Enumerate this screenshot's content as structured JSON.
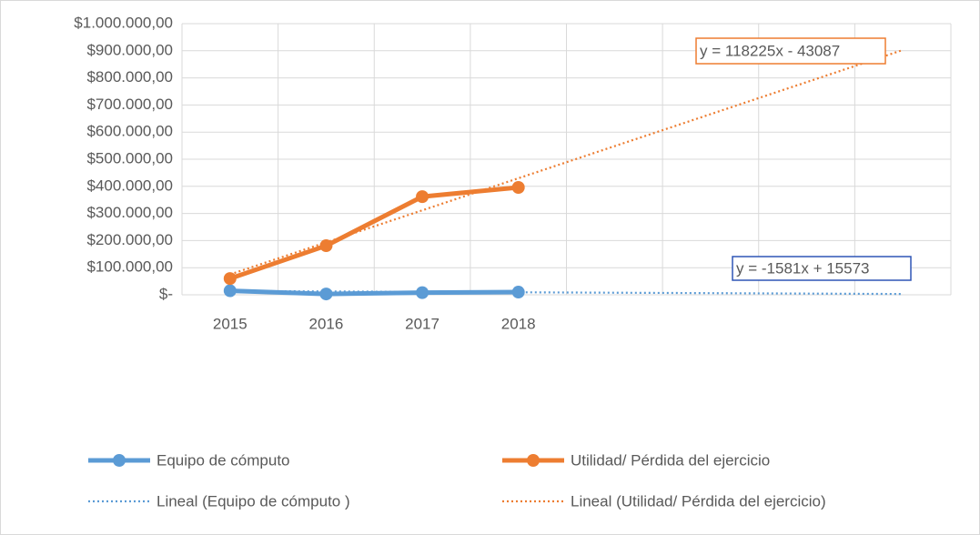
{
  "chart_data": {
    "type": "line",
    "categories": [
      "2015",
      "2016",
      "2017",
      "2018",
      null,
      null,
      null,
      null
    ],
    "series": [
      {
        "name": "Equipo de cómputo",
        "color": "#5b9bd5",
        "values": [
          15000,
          3000,
          8000,
          10000,
          null,
          null,
          null,
          null
        ],
        "trendline": {
          "name": "Lineal (Equipo de cómputo )",
          "equation": "y = -1581x + 15573",
          "slope": -1581,
          "intercept": 15573,
          "box_color": "#2f55b5"
        }
      },
      {
        "name": "Utilidad/ Pérdida del ejercicio",
        "color": "#ed7d31",
        "values": [
          60000,
          181000,
          362000,
          396000,
          null,
          null,
          null,
          null
        ],
        "trendline": {
          "name": "Lineal (Utilidad/ Pérdida del ejercicio)",
          "equation": "y = 118225x - 43087",
          "slope": 118225,
          "intercept": -43087,
          "box_color": "#ed7d31"
        }
      }
    ],
    "ylim": [
      0,
      1000000
    ],
    "yticks": [
      {
        "value": 0,
        "label": "$-"
      },
      {
        "value": 100000,
        "label": "$100.000,00"
      },
      {
        "value": 200000,
        "label": "$200.000,00"
      },
      {
        "value": 300000,
        "label": "$300.000,00"
      },
      {
        "value": 400000,
        "label": "$400.000,00"
      },
      {
        "value": 500000,
        "label": "$500.000,00"
      },
      {
        "value": 600000,
        "label": "$600.000,00"
      },
      {
        "value": 700000,
        "label": "$700.000,00"
      },
      {
        "value": 800000,
        "label": "$800.000,00"
      },
      {
        "value": 900000,
        "label": "$900.000,00"
      },
      {
        "value": 1000000,
        "label": "$1.000.000,00"
      }
    ],
    "grid": true
  }
}
